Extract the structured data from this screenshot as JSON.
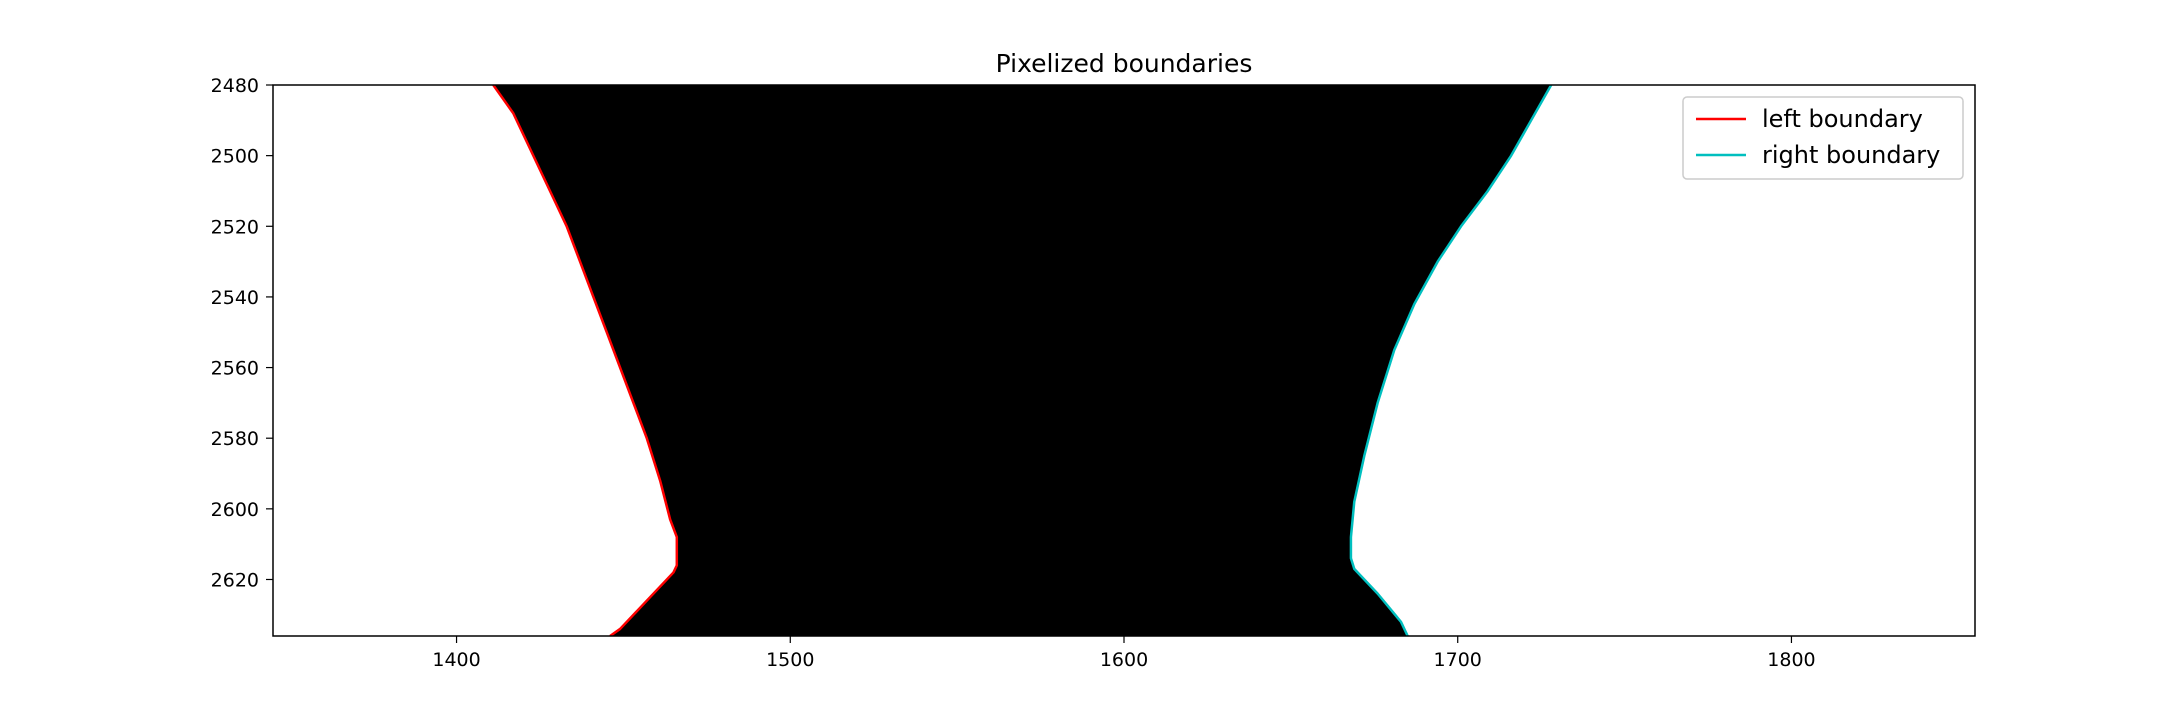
{
  "chart_data": {
    "type": "line",
    "title": "Pixelized boundaries",
    "xlabel": "",
    "ylabel": "",
    "xlim": [
      1345,
      1855
    ],
    "ylim": [
      2636,
      2480
    ],
    "y_inverted": true,
    "x_ticks": [
      1400,
      1500,
      1600,
      1700,
      1800
    ],
    "y_ticks": [
      2480,
      2500,
      2520,
      2540,
      2560,
      2580,
      2600,
      2620
    ],
    "grid": false,
    "legend_position": "top-right",
    "background_image": "binary mask: black region between the two boundaries, white elsewhere",
    "series": [
      {
        "name": "left boundary",
        "color": "#ff0000",
        "x": [
          1411,
          1417,
          1421,
          1425,
          1429,
          1433,
          1437,
          1441,
          1445,
          1449,
          1453,
          1457,
          1461,
          1464,
          1466,
          1466,
          1465,
          1457,
          1449,
          1446
        ],
        "y": [
          2480,
          2488,
          2496,
          2504,
          2512,
          2520,
          2530,
          2540,
          2550,
          2560,
          2570,
          2580,
          2592,
          2603,
          2608,
          2616,
          2618,
          2626,
          2634,
          2636
        ]
      },
      {
        "name": "right boundary",
        "color": "#00bfbf",
        "x": [
          1728,
          1722,
          1716,
          1709,
          1701,
          1694,
          1687,
          1681,
          1676,
          1672,
          1669,
          1668,
          1668,
          1669,
          1676,
          1683,
          1685
        ],
        "y": [
          2480,
          2490,
          2500,
          2510,
          2520,
          2530,
          2542,
          2555,
          2570,
          2585,
          2598,
          2608,
          2614,
          2617,
          2624,
          2632,
          2636
        ]
      }
    ],
    "colors": {
      "mask_fill": "#000000",
      "axes_edge": "#000000",
      "background": "#ffffff"
    }
  }
}
